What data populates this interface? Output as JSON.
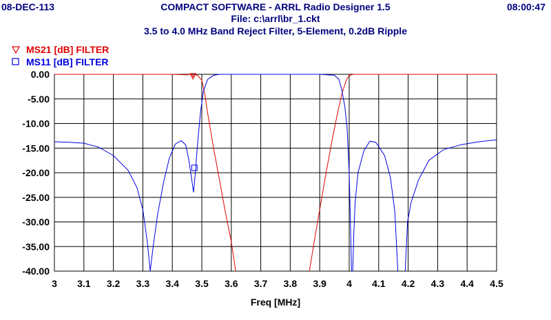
{
  "header": {
    "date": "08-DEC-113",
    "title": "COMPACT SOFTWARE - ARRL Radio Designer 1.5",
    "time": "08:00:47",
    "file": "File: c:\\arrl\\br_1.ckt",
    "subtitle": "3.5 to 4.0 MHz Band Reject Filter, 5-Element, 0.2dB Ripple"
  },
  "colors": {
    "header_text": "#000080",
    "series_ms21": "#e00000",
    "series_ms11": "#0000e0",
    "grid": "#000000",
    "axis_text": "#000000"
  },
  "chart_data": {
    "type": "line",
    "xlabel": "Freq [MHz]",
    "ylabel": "",
    "xlim": [
      3.0,
      4.5
    ],
    "ylim": [
      -40,
      0
    ],
    "x_ticks": [
      3.0,
      3.1,
      3.2,
      3.3,
      3.4,
      3.5,
      3.6,
      3.7,
      3.8,
      3.9,
      4.0,
      4.1,
      4.2,
      4.3,
      4.4,
      4.5
    ],
    "x_tick_labels": [
      "3",
      "3.1",
      "3.2",
      "3.3",
      "3.4",
      "3.5",
      "3.6",
      "3.7",
      "3.8",
      "3.9",
      "4",
      "4.1",
      "4.2",
      "4.3",
      "4.4",
      "4.5"
    ],
    "y_ticks": [
      0,
      -5,
      -10,
      -15,
      -20,
      -25,
      -30,
      -35,
      -40
    ],
    "y_tick_labels": [
      "0.00",
      "-5.00",
      "-10.00",
      "-15.00",
      "-20.00",
      "-25.00",
      "-30.00",
      "-35.00",
      "-40.00"
    ],
    "grid": true,
    "legend_position": "top-left",
    "series": [
      {
        "name": "MS21 [dB] FILTER",
        "marker": "triangle-down",
        "marker_x": 3.47,
        "marker_y": -0.4,
        "segments": [
          [
            [
              3.0,
              0
            ],
            [
              3.2,
              0
            ],
            [
              3.3,
              0
            ],
            [
              3.4,
              0
            ],
            [
              3.45,
              -0.1
            ],
            [
              3.465,
              0
            ],
            [
              3.47,
              -0.5
            ],
            [
              3.475,
              0
            ],
            [
              3.485,
              -0.2
            ],
            [
              3.5,
              -1.2
            ],
            [
              3.51,
              -4
            ],
            [
              3.52,
              -8
            ],
            [
              3.54,
              -15
            ],
            [
              3.56,
              -21.5
            ],
            [
              3.58,
              -28
            ],
            [
              3.6,
              -34
            ],
            [
              3.615,
              -40
            ]
          ],
          [
            [
              3.865,
              -40
            ],
            [
              3.88,
              -34.5
            ],
            [
              3.9,
              -27.5
            ],
            [
              3.92,
              -20.5
            ],
            [
              3.94,
              -14
            ],
            [
              3.96,
              -8
            ],
            [
              3.975,
              -4
            ],
            [
              3.99,
              -1.2
            ],
            [
              4.0,
              -0.2
            ],
            [
              4.015,
              0
            ],
            [
              4.1,
              0
            ],
            [
              4.3,
              0
            ],
            [
              4.5,
              0
            ]
          ]
        ]
      },
      {
        "name": "MS11 [dB] FILTER",
        "marker": "square",
        "marker_x": 3.475,
        "marker_y": -19,
        "segments": [
          [
            [
              3.0,
              -13.7
            ],
            [
              3.05,
              -13.8
            ],
            [
              3.1,
              -14.0
            ],
            [
              3.15,
              -14.8
            ],
            [
              3.2,
              -16.5
            ],
            [
              3.25,
              -19.5
            ],
            [
              3.28,
              -23
            ],
            [
              3.3,
              -27.5
            ],
            [
              3.315,
              -34
            ],
            [
              3.325,
              -40
            ],
            [
              3.335,
              -35
            ],
            [
              3.35,
              -28.5
            ],
            [
              3.37,
              -22
            ],
            [
              3.39,
              -17
            ],
            [
              3.41,
              -14.2
            ],
            [
              3.43,
              -13.5
            ],
            [
              3.445,
              -14.3
            ],
            [
              3.455,
              -17
            ],
            [
              3.465,
              -21
            ],
            [
              3.472,
              -24
            ],
            [
              3.478,
              -20
            ],
            [
              3.485,
              -14.5
            ],
            [
              3.495,
              -8
            ],
            [
              3.505,
              -3.5
            ],
            [
              3.52,
              -1
            ],
            [
              3.54,
              -0.2
            ],
            [
              3.56,
              0
            ],
            [
              3.6,
              0
            ],
            [
              3.7,
              0
            ],
            [
              3.8,
              0
            ],
            [
              3.9,
              0
            ],
            [
              3.95,
              -0.2
            ],
            [
              3.965,
              -1
            ],
            [
              3.975,
              -3.2
            ],
            [
              3.985,
              -6.5
            ],
            [
              3.993,
              -11
            ],
            [
              4.0,
              -20
            ],
            [
              4.005,
              -32
            ],
            [
              4.008,
              -40
            ]
          ],
          [
            [
              4.012,
              -40
            ],
            [
              4.016,
              -32
            ],
            [
              4.02,
              -26
            ],
            [
              4.03,
              -20
            ],
            [
              4.05,
              -15.5
            ],
            [
              4.07,
              -13.6
            ],
            [
              4.09,
              -13.8
            ],
            [
              4.12,
              -16.5
            ],
            [
              4.14,
              -21
            ],
            [
              4.155,
              -28
            ],
            [
              4.165,
              -40
            ]
          ],
          [
            [
              4.19,
              -40
            ],
            [
              4.198,
              -30
            ],
            [
              4.21,
              -26
            ],
            [
              4.235,
              -21.5
            ],
            [
              4.27,
              -17.5
            ],
            [
              4.32,
              -15.3
            ],
            [
              4.38,
              -14.3
            ],
            [
              4.44,
              -13.7
            ],
            [
              4.5,
              -13.3
            ]
          ]
        ]
      }
    ]
  }
}
